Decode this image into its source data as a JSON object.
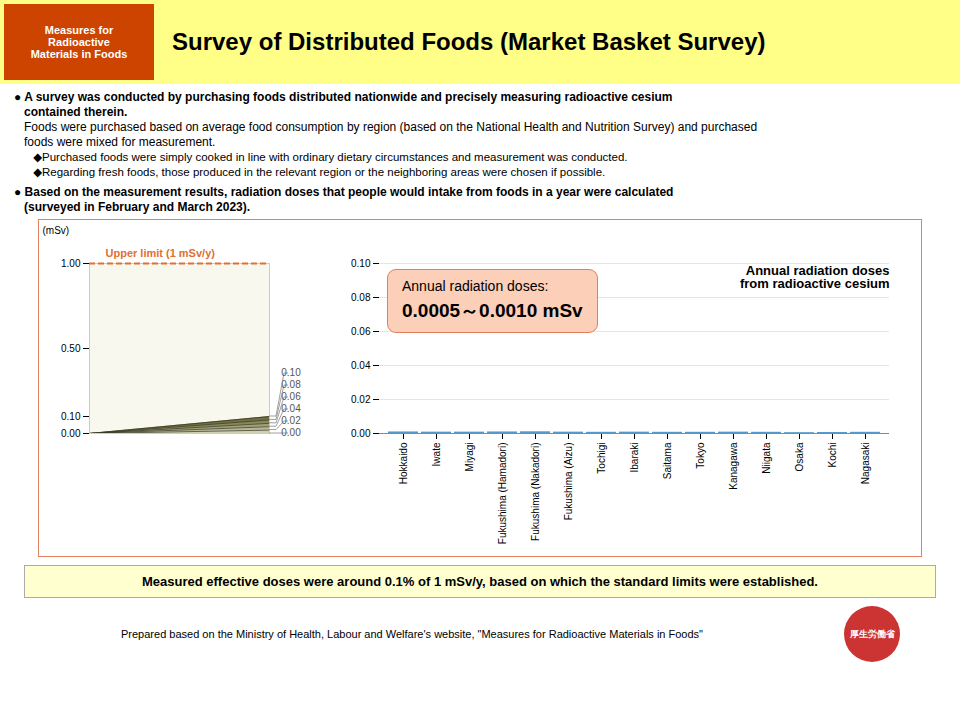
{
  "title": "Survey of Distributed Foods (Market Basket Survey)",
  "header_box_text": "Measures for\nRadioactive\nMaterials in Foods",
  "bullets": [
    {
      "bold": [
        "● A survey was conducted by purchasing foods distributed nationwide and precisely measuring radioactive cesium",
        "   contained therein."
      ],
      "text": [
        "   Foods were purchased based on average food consumption by region (based on the National Health and Nutrition Survey) and purchased",
        "   foods were mixed for measurement."
      ],
      "sub": [
        "      ◆Purchased foods were simply cooked in line with ordinary dietary circumstances and measurement was conducted.",
        "      ◆Regarding fresh foods, those produced in the relevant region or the neighboring areas were chosen if possible."
      ]
    },
    {
      "bold": [
        "● Based on the measurement results, radiation doses that people would intake from foods in a year were calculated",
        "   (surveyed in February and March 2023)."
      ]
    }
  ],
  "bottom_text": "Measured effective doses were around 0.1% of 1 mSv/y, based on which the standard limits were established.",
  "footer_text": "Prepared based on the Ministry of Health, Labour and Welfare's website, \"Measures for Radioactive Materials in Foods\"",
  "logo_text": "厚生労働省",
  "chart_data": [
    {
      "type": "fan",
      "xlim": [
        0,
        1
      ],
      "ylim": [
        0,
        1
      ],
      "yticks": [
        {
          "value": 0,
          "label": "0.00"
        },
        {
          "value": 0.1,
          "label": "0.10"
        },
        {
          "value": 0.5,
          "label": "0.50"
        },
        {
          "value": 1,
          "label": "1.00"
        }
      ],
      "ylabel": "(mSv)",
      "values": [
        0.02,
        0.04,
        0.06,
        0.08,
        0.1
      ],
      "colors": [
        "#D0D0B0",
        "#B8B898",
        "#A0A078",
        "#888858",
        "#707040"
      ],
      "y2lim": [
        0,
        1
      ],
      "y2ticks": [
        {
          "value": 0,
          "label": "0.00"
        },
        0.02,
        0.04,
        0.06,
        0.08,
        {
          "value": 0.1,
          "label": "0.10"
        }
      ],
      "upper_limit": {
        "value": 1.0,
        "label": "Upper limit (1 mSv/y)",
        "color": "#E07030"
      },
      "tick_labels": "y"
    },
    {
      "type": "bar",
      "title": "Annual radiation doses\nfrom radioactive cesium",
      "categories": [
        "Hokkaido",
        "Iwate",
        "Miyagi",
        "Fukushima (Hamadori)",
        "Fukushima (Nakadori)",
        "Fukushima (Aizu)",
        "Tochigi",
        "Ibaraki",
        "Saitama",
        "Tokyo",
        "Kanagawa",
        "Niigata",
        "Osaka",
        "Kochi",
        "Nagasaki"
      ],
      "values": [
        0.0009,
        0.0008,
        0.0008,
        0.0009,
        0.001,
        0.0008,
        0.0007,
        0.0008,
        0.0007,
        0.0007,
        0.0008,
        0.0007,
        0.0005,
        0.0006,
        0.0007
      ],
      "color": "#5599CC",
      "ylim": [
        0,
        0.1
      ],
      "yticks": [
        {
          "value": 0,
          "label": "0.00"
        },
        0.02,
        0.04,
        0.06,
        0.08,
        {
          "value": 0.1,
          "label": "0.10"
        }
      ],
      "grid": true,
      "annotation": [
        "Annual radiation doses:",
        "0.0005～0.0010 mSv"
      ]
    }
  ]
}
